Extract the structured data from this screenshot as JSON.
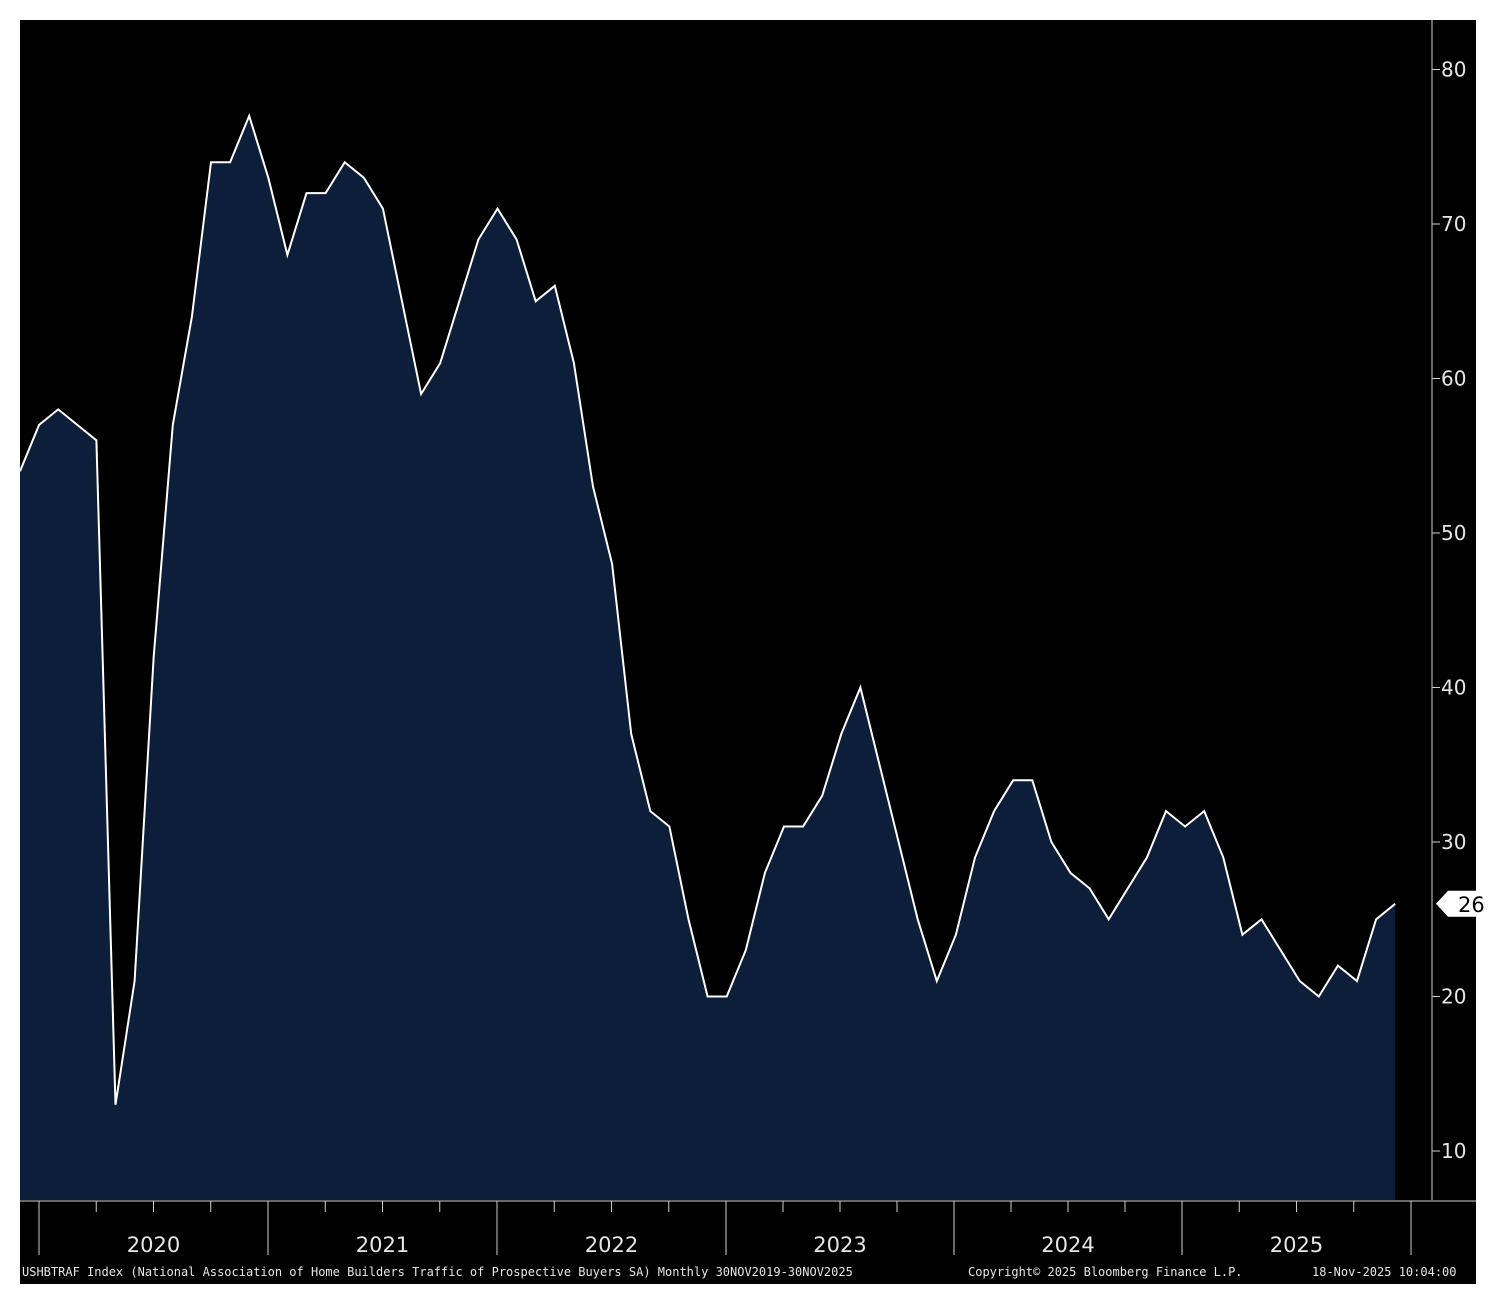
{
  "chart_data": {
    "type": "area",
    "series": [
      {
        "values": [
          54,
          57,
          58,
          57,
          56,
          13,
          21,
          42,
          57,
          64,
          74,
          74,
          77,
          73,
          68,
          72,
          72,
          74,
          73,
          71,
          65,
          59,
          61,
          65,
          69,
          71,
          69,
          65,
          66,
          61,
          53,
          48,
          37,
          32,
          31,
          25,
          20,
          20,
          23,
          28,
          31,
          31,
          33,
          37,
          40,
          35,
          30,
          25,
          21,
          24,
          29,
          32,
          34,
          34,
          30,
          28,
          27,
          25,
          27,
          29,
          32,
          31,
          32,
          29,
          24,
          25,
          23,
          21,
          20,
          22,
          21,
          25,
          26
        ]
      }
    ],
    "x_start": "2019-11",
    "x_end": "2025-11",
    "x_tick_labels": [
      "2020",
      "2021",
      "2022",
      "2023",
      "2024",
      "2025"
    ],
    "y_ticks": [
      10,
      20,
      30,
      40,
      50,
      60,
      70,
      80
    ],
    "ylim": [
      7,
      84
    ],
    "last_value_label": "26",
    "colors": {
      "background": "#000000",
      "area_fill": "#0d1e3a",
      "line": "#ffffff",
      "text": "#e6e6e6"
    }
  },
  "footer": {
    "description": "USHBTRAF Index (National Association of Home Builders Traffic of Prospective Buyers SA) Monthly 30NOV2019-30NOV2025",
    "copyright": "Copyright© 2025 Bloomberg Finance L.P.",
    "timestamp": "18-Nov-2025 10:04:00"
  }
}
